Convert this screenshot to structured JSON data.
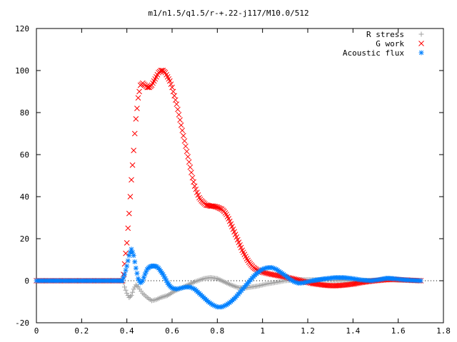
{
  "chart_data": {
    "type": "scatter",
    "title": "m1/n1.5/q1.5/r-+.22-j117/M10.0/512",
    "xlabel": "",
    "ylabel": "",
    "xlim": [
      0,
      1.8
    ],
    "ylim": [
      -20,
      120
    ],
    "xticks": [
      "0",
      "0.2",
      "0.4",
      "0.6",
      "0.8",
      "1",
      "1.2",
      "1.4",
      "1.6",
      "1.8"
    ],
    "yticks": [
      "-20",
      "0",
      "20",
      "40",
      "60",
      "80",
      "100",
      "120"
    ],
    "grid": false,
    "legend_position": "top-right",
    "series": [
      {
        "name": "R stress",
        "marker": "plus",
        "color": "#a0a0a0",
        "points": [
          [
            0.38,
            0
          ],
          [
            0.385,
            -1
          ],
          [
            0.39,
            -3
          ],
          [
            0.4,
            -6
          ],
          [
            0.41,
            -8
          ],
          [
            0.42,
            -7
          ],
          [
            0.43,
            -4
          ],
          [
            0.44,
            -2
          ],
          [
            0.45,
            -3
          ],
          [
            0.47,
            -6
          ],
          [
            0.49,
            -8
          ],
          [
            0.51,
            -9.5
          ],
          [
            0.53,
            -9
          ],
          [
            0.55,
            -8
          ],
          [
            0.58,
            -7
          ],
          [
            0.61,
            -5
          ],
          [
            0.64,
            -3.5
          ],
          [
            0.67,
            -2
          ],
          [
            0.7,
            -0.5
          ],
          [
            0.74,
            1
          ],
          [
            0.77,
            1.5
          ],
          [
            0.8,
            1
          ],
          [
            0.83,
            -0.5
          ],
          [
            0.86,
            -2
          ],
          [
            0.89,
            -3.2
          ],
          [
            0.92,
            -3.5
          ],
          [
            0.95,
            -3
          ],
          [
            0.98,
            -2.5
          ],
          [
            1.02,
            -1.5
          ],
          [
            1.06,
            -0.8
          ],
          [
            1.1,
            0
          ],
          [
            1.14,
            0.3
          ],
          [
            1.18,
            0.5
          ],
          [
            1.22,
            0.5
          ],
          [
            1.26,
            0.4
          ],
          [
            1.3,
            0.2
          ],
          [
            1.35,
            0.1
          ],
          [
            1.4,
            0
          ],
          [
            1.45,
            0.1
          ],
          [
            1.5,
            0.3
          ],
          [
            1.55,
            0.5
          ],
          [
            1.6,
            0.3
          ],
          [
            1.65,
            0.1
          ],
          [
            1.7,
            0
          ]
        ]
      },
      {
        "name": "G work",
        "marker": "cross",
        "color": "#ff0000",
        "points": [
          [
            0.38,
            0
          ],
          [
            0.385,
            3
          ],
          [
            0.39,
            8
          ],
          [
            0.395,
            13
          ],
          [
            0.4,
            18
          ],
          [
            0.405,
            25
          ],
          [
            0.41,
            32
          ],
          [
            0.415,
            40
          ],
          [
            0.42,
            48
          ],
          [
            0.425,
            55
          ],
          [
            0.43,
            62
          ],
          [
            0.435,
            70
          ],
          [
            0.44,
            77
          ],
          [
            0.445,
            82
          ],
          [
            0.45,
            87
          ],
          [
            0.455,
            90
          ],
          [
            0.46,
            93
          ],
          [
            0.47,
            94
          ],
          [
            0.48,
            93
          ],
          [
            0.49,
            92
          ],
          [
            0.5,
            92
          ],
          [
            0.51,
            93
          ],
          [
            0.52,
            95
          ],
          [
            0.53,
            97
          ],
          [
            0.54,
            99
          ],
          [
            0.55,
            100
          ],
          [
            0.56,
            100
          ],
          [
            0.57,
            99
          ],
          [
            0.58,
            97
          ],
          [
            0.59,
            95
          ],
          [
            0.6,
            92
          ],
          [
            0.61,
            88
          ],
          [
            0.62,
            84
          ],
          [
            0.63,
            79
          ],
          [
            0.64,
            74
          ],
          [
            0.65,
            69
          ],
          [
            0.66,
            64
          ],
          [
            0.67,
            59
          ],
          [
            0.68,
            54
          ],
          [
            0.69,
            49
          ],
          [
            0.7,
            45
          ],
          [
            0.71,
            42
          ],
          [
            0.72,
            39.5
          ],
          [
            0.73,
            38
          ],
          [
            0.74,
            37
          ],
          [
            0.75,
            36
          ],
          [
            0.76,
            35.8
          ],
          [
            0.77,
            35.5
          ],
          [
            0.78,
            35.5
          ],
          [
            0.79,
            35.3
          ],
          [
            0.8,
            35
          ],
          [
            0.81,
            34.5
          ],
          [
            0.82,
            34
          ],
          [
            0.83,
            33
          ],
          [
            0.84,
            31.5
          ],
          [
            0.85,
            29.5
          ],
          [
            0.86,
            27
          ],
          [
            0.87,
            24.5
          ],
          [
            0.88,
            22
          ],
          [
            0.89,
            19.5
          ],
          [
            0.9,
            17
          ],
          [
            0.91,
            14.5
          ],
          [
            0.92,
            12.5
          ],
          [
            0.93,
            10.5
          ],
          [
            0.94,
            8.8
          ],
          [
            0.95,
            7.5
          ],
          [
            0.96,
            6.3
          ],
          [
            0.97,
            5.5
          ],
          [
            0.98,
            4.8
          ],
          [
            1.0,
            4
          ],
          [
            1.02,
            3.5
          ],
          [
            1.04,
            3
          ],
          [
            1.06,
            2.6
          ],
          [
            1.08,
            2.2
          ],
          [
            1.1,
            1.8
          ],
          [
            1.12,
            1.3
          ],
          [
            1.14,
            0.8
          ],
          [
            1.16,
            0.3
          ],
          [
            1.18,
            -0.3
          ],
          [
            1.2,
            -0.8
          ],
          [
            1.22,
            -1.3
          ],
          [
            1.25,
            -1.8
          ],
          [
            1.28,
            -2.2
          ],
          [
            1.31,
            -2.4
          ],
          [
            1.34,
            -2.3
          ],
          [
            1.37,
            -2
          ],
          [
            1.4,
            -1.6
          ],
          [
            1.43,
            -1
          ],
          [
            1.46,
            -0.5
          ],
          [
            1.5,
            0
          ],
          [
            1.54,
            0.4
          ],
          [
            1.58,
            0.6
          ],
          [
            1.62,
            0.4
          ],
          [
            1.66,
            0.2
          ],
          [
            1.7,
            0
          ]
        ]
      },
      {
        "name": "Acoustic flux",
        "marker": "star",
        "color": "#0080ff",
        "points": [
          [
            0.38,
            0
          ],
          [
            0.39,
            3
          ],
          [
            0.4,
            7
          ],
          [
            0.41,
            12
          ],
          [
            0.42,
            15
          ],
          [
            0.43,
            12
          ],
          [
            0.44,
            6
          ],
          [
            0.45,
            1
          ],
          [
            0.46,
            -1
          ],
          [
            0.47,
            0
          ],
          [
            0.48,
            3
          ],
          [
            0.49,
            5.5
          ],
          [
            0.5,
            6.5
          ],
          [
            0.51,
            7
          ],
          [
            0.52,
            7
          ],
          [
            0.53,
            6.8
          ],
          [
            0.54,
            6
          ],
          [
            0.55,
            4.5
          ],
          [
            0.56,
            3
          ],
          [
            0.57,
            1
          ],
          [
            0.58,
            -1
          ],
          [
            0.59,
            -2.5
          ],
          [
            0.6,
            -3.5
          ],
          [
            0.62,
            -4
          ],
          [
            0.64,
            -3.5
          ],
          [
            0.66,
            -3
          ],
          [
            0.68,
            -3
          ],
          [
            0.7,
            -4
          ],
          [
            0.72,
            -6
          ],
          [
            0.74,
            -8
          ],
          [
            0.76,
            -10
          ],
          [
            0.78,
            -11.5
          ],
          [
            0.8,
            -12.5
          ],
          [
            0.82,
            -12.5
          ],
          [
            0.84,
            -11.5
          ],
          [
            0.86,
            -10
          ],
          [
            0.88,
            -8
          ],
          [
            0.9,
            -5.5
          ],
          [
            0.92,
            -3
          ],
          [
            0.94,
            -0.5
          ],
          [
            0.96,
            2
          ],
          [
            0.98,
            4
          ],
          [
            1.0,
            5.5
          ],
          [
            1.02,
            6.2
          ],
          [
            1.04,
            6.3
          ],
          [
            1.06,
            5.5
          ],
          [
            1.08,
            4
          ],
          [
            1.1,
            2.5
          ],
          [
            1.12,
            0.8
          ],
          [
            1.14,
            -0.5
          ],
          [
            1.16,
            -1.2
          ],
          [
            1.18,
            -1
          ],
          [
            1.2,
            -0.5
          ],
          [
            1.22,
            0
          ],
          [
            1.25,
            0.5
          ],
          [
            1.28,
            1
          ],
          [
            1.32,
            1.5
          ],
          [
            1.36,
            1.5
          ],
          [
            1.4,
            1
          ],
          [
            1.44,
            0.3
          ],
          [
            1.48,
            0
          ],
          [
            1.52,
            0.6
          ],
          [
            1.55,
            1.2
          ],
          [
            1.58,
            1
          ],
          [
            1.62,
            0.5
          ],
          [
            1.66,
            0.2
          ],
          [
            1.7,
            0
          ]
        ]
      }
    ]
  }
}
